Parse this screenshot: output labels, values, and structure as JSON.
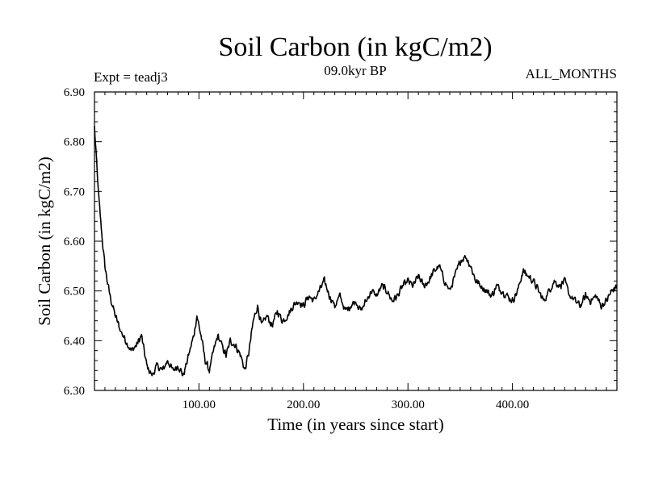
{
  "chart_data": {
    "type": "line",
    "title": "Soil Carbon (in kgC/m2)",
    "subtitle": "09.0kyr BP",
    "experiment_label": "Expt = teadj3",
    "period_label": "ALL_MONTHS",
    "xlabel": "Time (in years since start)",
    "ylabel": "Soil Carbon (in kgC/m2)",
    "xlim": [
      0,
      500
    ],
    "ylim": [
      6.3,
      6.9
    ],
    "x_ticks": [
      100,
      200,
      300,
      400
    ],
    "x_tick_labels": [
      "100.00",
      "200.00",
      "300.00",
      "400.00"
    ],
    "y_ticks": [
      6.3,
      6.4,
      6.5,
      6.6,
      6.7,
      6.8,
      6.9
    ],
    "y_tick_labels": [
      "6.30",
      "6.40",
      "6.50",
      "6.60",
      "6.70",
      "6.80",
      "6.90"
    ],
    "series": [
      {
        "name": "Soil Carbon",
        "color": "#000000",
        "x": [
          0,
          2,
          4,
          6,
          8,
          10,
          13,
          16,
          20,
          25,
          30,
          35,
          40,
          45,
          50,
          55,
          60,
          65,
          70,
          75,
          80,
          85,
          90,
          95,
          98,
          102,
          106,
          110,
          114,
          118,
          122,
          126,
          130,
          135,
          140,
          144,
          148,
          152,
          156,
          160,
          165,
          170,
          175,
          180,
          185,
          190,
          195,
          200,
          205,
          210,
          215,
          220,
          225,
          230,
          235,
          240,
          245,
          250,
          255,
          260,
          265,
          270,
          275,
          280,
          285,
          290,
          295,
          300,
          305,
          310,
          315,
          320,
          325,
          330,
          335,
          340,
          345,
          350,
          355,
          360,
          365,
          370,
          375,
          380,
          385,
          390,
          395,
          400,
          405,
          410,
          415,
          420,
          425,
          430,
          435,
          440,
          445,
          450,
          455,
          460,
          465,
          470,
          475,
          480,
          485,
          490,
          495,
          500
        ],
        "values": [
          6.83,
          6.76,
          6.69,
          6.64,
          6.59,
          6.55,
          6.51,
          6.48,
          6.45,
          6.42,
          6.4,
          6.38,
          6.39,
          6.41,
          6.35,
          6.33,
          6.35,
          6.34,
          6.36,
          6.34,
          6.35,
          6.33,
          6.37,
          6.41,
          6.45,
          6.41,
          6.36,
          6.34,
          6.38,
          6.41,
          6.39,
          6.37,
          6.4,
          6.39,
          6.37,
          6.34,
          6.38,
          6.44,
          6.47,
          6.43,
          6.45,
          6.43,
          6.46,
          6.44,
          6.45,
          6.47,
          6.48,
          6.47,
          6.49,
          6.48,
          6.5,
          6.52,
          6.49,
          6.47,
          6.49,
          6.46,
          6.47,
          6.48,
          6.46,
          6.48,
          6.5,
          6.49,
          6.51,
          6.5,
          6.48,
          6.49,
          6.51,
          6.52,
          6.51,
          6.53,
          6.51,
          6.52,
          6.54,
          6.55,
          6.52,
          6.5,
          6.53,
          6.56,
          6.57,
          6.55,
          6.52,
          6.51,
          6.5,
          6.49,
          6.51,
          6.5,
          6.49,
          6.48,
          6.5,
          6.54,
          6.53,
          6.52,
          6.5,
          6.48,
          6.5,
          6.52,
          6.51,
          6.52,
          6.49,
          6.48,
          6.47,
          6.49,
          6.48,
          6.49,
          6.47,
          6.48,
          6.5,
          6.51
        ]
      }
    ]
  }
}
